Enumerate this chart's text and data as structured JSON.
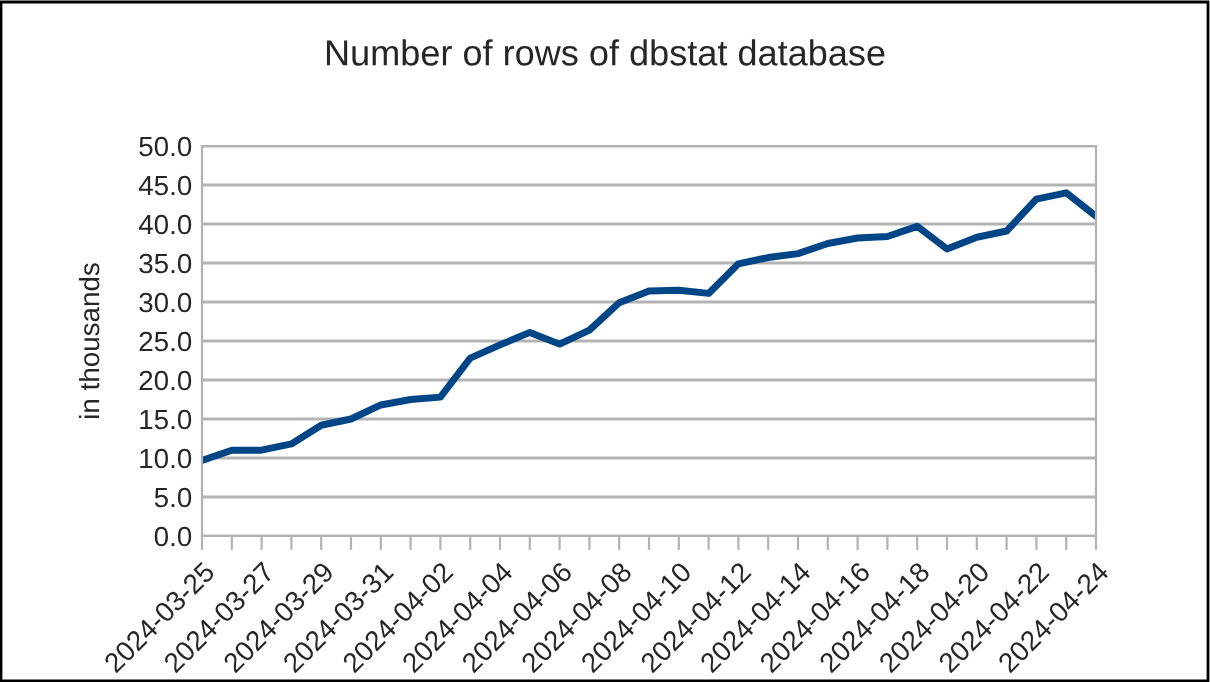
{
  "chart_data": {
    "type": "line",
    "title": "Number of rows of dbstat database",
    "ylabel": "in thousands",
    "categories": [
      "2024-03-25",
      null,
      "2024-03-27",
      null,
      "2024-03-29",
      null,
      "2024-03-31",
      null,
      "2024-04-02",
      null,
      "2024-04-04",
      null,
      "2024-04-06",
      null,
      "2024-04-08",
      null,
      "2024-04-10",
      null,
      "2024-04-12",
      null,
      "2024-04-14",
      null,
      "2024-04-16",
      null,
      "2024-04-18",
      null,
      "2024-04-20",
      null,
      "2024-04-22",
      null,
      "2024-04-24"
    ],
    "series": [
      {
        "color": "#004586",
        "values": [
          9.7,
          11.0,
          11.0,
          11.8,
          14.2,
          15.0,
          16.8,
          17.5,
          17.8,
          22.8,
          24.5,
          26.1,
          24.6,
          26.4,
          29.9,
          31.4,
          31.5,
          31.1,
          34.9,
          35.7,
          36.2,
          37.5,
          38.2,
          38.4,
          39.7,
          36.8,
          38.3,
          39.1,
          43.2,
          44.0,
          41.0
        ]
      }
    ],
    "ylim": [
      0,
      50
    ],
    "yticks": [
      {
        "value": 0,
        "label": "0.0"
      },
      {
        "value": 5,
        "label": "5.0"
      },
      {
        "value": 10,
        "label": "10.0"
      },
      {
        "value": 15,
        "label": "15.0"
      },
      {
        "value": 20,
        "label": "20.0"
      },
      {
        "value": 25,
        "label": "25.0"
      },
      {
        "value": 30,
        "label": "30.0"
      },
      {
        "value": 35,
        "label": "35.0"
      },
      {
        "value": 40,
        "label": "40.0"
      },
      {
        "value": 45,
        "label": "45.0"
      },
      {
        "value": 50,
        "label": "50.0"
      }
    ],
    "grid": "y",
    "line_style": "solid"
  }
}
